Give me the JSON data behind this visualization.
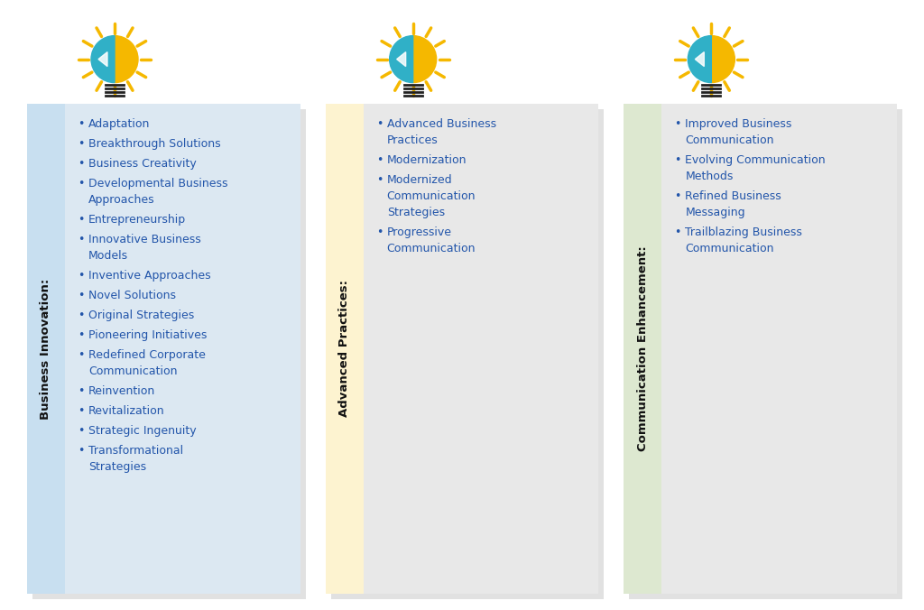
{
  "fig_bg": "#ffffff",
  "panels": [
    {
      "title": "Business Innovation:",
      "label_bg": "#c8dff0",
      "content_bg": "#dce8f2",
      "icon_bg": "#ffffff",
      "items": [
        [
          "Adaptation"
        ],
        [
          "Breakthrough Solutions"
        ],
        [
          "Business Creativity"
        ],
        [
          "Developmental Business",
          "Approaches"
        ],
        [
          "Entrepreneurship"
        ],
        [
          "Innovative Business",
          "Models"
        ],
        [
          "Inventive Approaches"
        ],
        [
          "Novel Solutions"
        ],
        [
          "Original Strategies"
        ],
        [
          "Pioneering Initiatives"
        ],
        [
          "Redefined Corporate",
          "Communication"
        ],
        [
          "Reinvention"
        ],
        [
          "Revitalization"
        ],
        [
          "Strategic Ingenuity"
        ],
        [
          "Transformational",
          "Strategies"
        ]
      ]
    },
    {
      "title": "Advanced Practices:",
      "label_bg": "#fdf3d0",
      "content_bg": "#e8e8e8",
      "icon_bg": "#ffffff",
      "items": [
        [
          "Advanced Business",
          "Practices"
        ],
        [
          "Modernization"
        ],
        [
          "Modernized",
          "Communication",
          "Strategies"
        ],
        [
          "Progressive",
          "Communication"
        ]
      ]
    },
    {
      "title": "Communication Enhancement:",
      "label_bg": "#dde8d0",
      "content_bg": "#e8e8e8",
      "icon_bg": "#ffffff",
      "items": [
        [
          "Improved Business",
          "Communication"
        ],
        [
          "Evolving Communication",
          "Methods"
        ],
        [
          "Refined Business",
          "Messaging"
        ],
        [
          "Trailblazing Business",
          "Communication"
        ]
      ]
    }
  ],
  "text_color": "#2255aa",
  "title_color": "#111111",
  "shadow_color": "#888888",
  "bullet": "•"
}
